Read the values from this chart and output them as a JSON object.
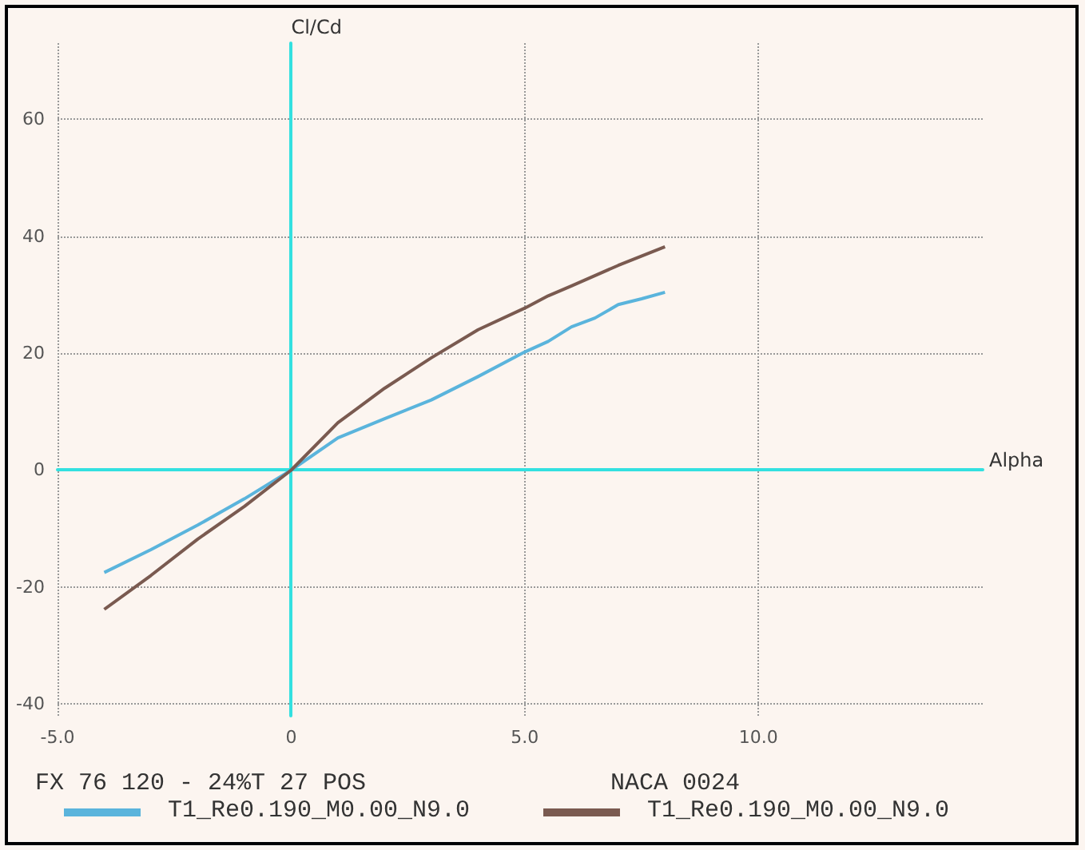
{
  "chart_data": {
    "type": "line",
    "xlabel": "Alpha",
    "ylabel": "Cl/Cd",
    "xlim": [
      -5,
      14.8
    ],
    "ylim": [
      -42,
      73
    ],
    "xticks": [
      {
        "value": -5,
        "label": "-5.0"
      },
      0,
      {
        "value": 5,
        "label": "5.0"
      },
      {
        "value": 10,
        "label": "10.0"
      }
    ],
    "yticks": [
      -40,
      -20,
      0,
      20,
      40,
      60
    ],
    "grid": true,
    "legend": "bottom",
    "marker": "none",
    "line_style": "solid",
    "annotations": [
      "FX 76 120 - 24%T 27 POS",
      "NACA 0024"
    ],
    "series": [
      {
        "name": "T1_Re0.190_M0.00_N9.0",
        "color": "#5ab4dc",
        "x": [
          -4,
          -3,
          -2,
          -1,
          0,
          1,
          2,
          3,
          4,
          5,
          5.5,
          6,
          6.5,
          7,
          7.5,
          8
        ],
        "values": [
          -17.5,
          -13.6,
          -9.4,
          -4.9,
          0,
          5.5,
          8.8,
          12,
          16,
          20.2,
          22,
          24.5,
          26,
          28.3,
          29.3,
          30.4
        ]
      },
      {
        "name": "T1_Re0.190_M0.00_N9.0",
        "color": "#7a5a50",
        "x": [
          -4,
          -3,
          -2,
          -1,
          0,
          1,
          2,
          3,
          4,
          5,
          5.5,
          6,
          7,
          8
        ],
        "values": [
          -23.8,
          -18,
          -11.8,
          -6.2,
          0,
          8.1,
          14,
          19.2,
          24,
          27.7,
          29.8,
          31.5,
          35,
          38.2
        ]
      }
    ]
  }
}
